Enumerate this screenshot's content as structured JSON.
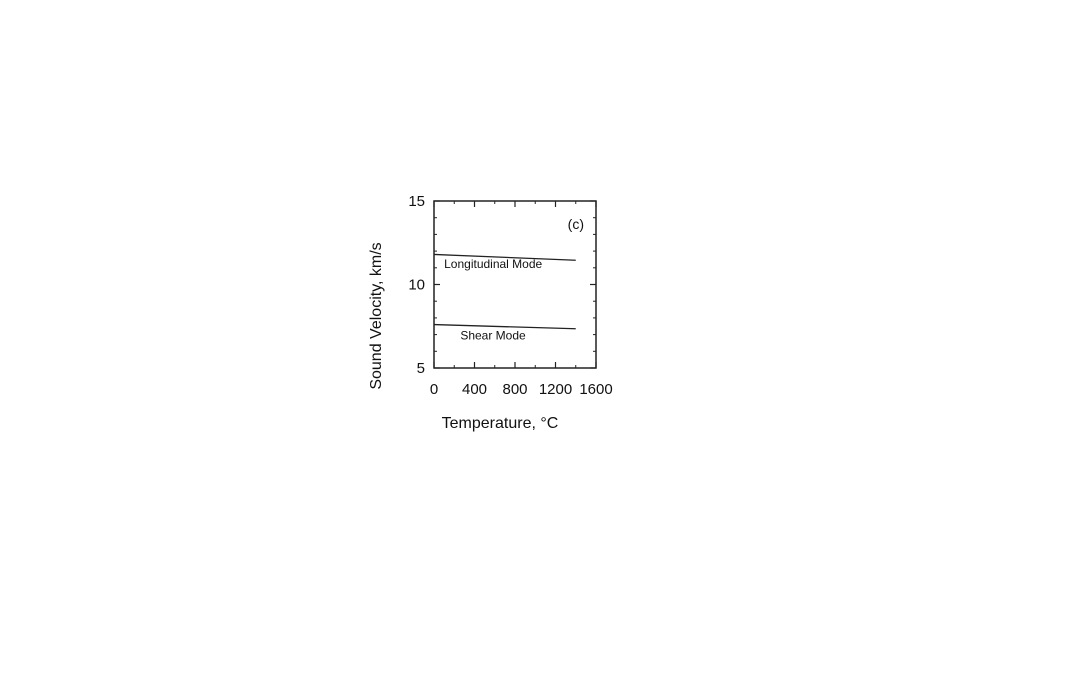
{
  "chart_data": {
    "type": "line",
    "title": "",
    "panel_label": "(c)",
    "xlabel": "Temperature, °C",
    "ylabel": "Sound Velocity, km/s",
    "xlim": [
      0,
      1600
    ],
    "ylim": [
      5,
      15
    ],
    "xticks": [
      0,
      400,
      800,
      1200,
      1600
    ],
    "xtick_labels": [
      "0",
      "400",
      "800",
      "1200",
      "1600"
    ],
    "yticks": [
      5,
      10,
      15
    ],
    "ytick_labels": [
      "5",
      "10",
      "15"
    ],
    "grid": false,
    "series": [
      {
        "name": "Longitudinal Mode",
        "x": [
          0,
          1400
        ],
        "y": [
          11.8,
          11.45
        ]
      },
      {
        "name": "Shear Mode",
        "x": [
          0,
          1400
        ],
        "y": [
          7.6,
          7.35
        ]
      }
    ],
    "annotations": [
      {
        "text": "Longitudinal Mode",
        "x": 100,
        "y": 11.0
      },
      {
        "text": "Shear Mode",
        "x": 260,
        "y": 6.7
      }
    ]
  }
}
